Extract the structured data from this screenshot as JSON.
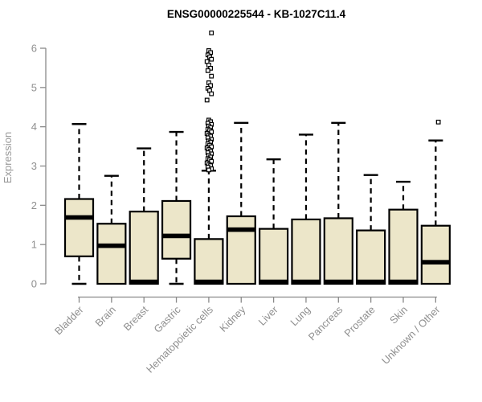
{
  "page": {
    "background": "#ffffff"
  },
  "chart_data": {
    "type": "boxplot",
    "title": "ENSG00000225544 - KB-1027C11.4",
    "xlabel": "",
    "ylabel": "Expression",
    "ylim": [
      0,
      6
    ],
    "yticks": [
      0,
      1,
      2,
      3,
      4,
      5,
      6
    ],
    "grid": false,
    "legend": "none",
    "categories": [
      "Bladder",
      "Brain",
      "Breast",
      "Gastric",
      "Hematopoietic cells",
      "Kidney",
      "Liver",
      "Lung",
      "Pancreas",
      "Prostate",
      "Skin",
      "Unknown / Other"
    ],
    "series": [
      {
        "category": "Bladder",
        "whisker_low": 0,
        "q1": 0.7,
        "median": 1.69,
        "q3": 2.16,
        "whisker_high": 4.07,
        "outliers": []
      },
      {
        "category": "Brain",
        "whisker_low": 0,
        "q1": 0.0,
        "median": 0.97,
        "q3": 1.53,
        "whisker_high": 2.75,
        "outliers": []
      },
      {
        "category": "Breast",
        "whisker_low": 0,
        "q1": 0.0,
        "median": 0.05,
        "q3": 1.84,
        "whisker_high": 3.45,
        "outliers": []
      },
      {
        "category": "Gastric",
        "whisker_low": 0,
        "q1": 0.64,
        "median": 1.22,
        "q3": 2.11,
        "whisker_high": 3.87,
        "outliers": []
      },
      {
        "category": "Hematopoietic cells",
        "whisker_low": 0,
        "q1": 0.0,
        "median": 0.05,
        "q3": 1.14,
        "whisker_high": 2.88,
        "outliers": [
          6.39,
          5.94,
          5.89,
          5.83,
          5.78,
          5.72,
          5.66,
          5.57,
          5.49,
          5.43,
          5.29,
          5.12,
          5.05,
          4.98,
          4.92,
          4.84,
          4.68,
          4.17,
          4.13,
          4.09,
          4.06,
          4.02,
          3.98,
          3.94,
          3.91,
          3.87,
          3.83,
          3.79,
          3.76,
          3.72,
          3.68,
          3.64,
          3.61,
          3.57,
          3.53,
          3.49,
          3.46,
          3.42,
          3.38,
          3.34,
          3.31,
          3.27,
          3.23,
          3.19,
          3.16,
          3.12,
          3.08,
          3.04,
          3.01,
          2.97,
          2.93,
          2.9
        ]
      },
      {
        "category": "Kidney",
        "whisker_low": 0,
        "q1": 0.0,
        "median": 1.38,
        "q3": 1.72,
        "whisker_high": 4.1,
        "outliers": []
      },
      {
        "category": "Liver",
        "whisker_low": 0,
        "q1": 0.0,
        "median": 0.05,
        "q3": 1.4,
        "whisker_high": 3.17,
        "outliers": []
      },
      {
        "category": "Lung",
        "whisker_low": 0,
        "q1": 0.0,
        "median": 0.05,
        "q3": 1.64,
        "whisker_high": 3.8,
        "outliers": []
      },
      {
        "category": "Pancreas",
        "whisker_low": 0,
        "q1": 0.0,
        "median": 0.05,
        "q3": 1.67,
        "whisker_high": 4.1,
        "outliers": []
      },
      {
        "category": "Prostate",
        "whisker_low": 0,
        "q1": 0.0,
        "median": 0.05,
        "q3": 1.36,
        "whisker_high": 2.77,
        "outliers": []
      },
      {
        "category": "Skin",
        "whisker_low": 0,
        "q1": 0.0,
        "median": 0.05,
        "q3": 1.89,
        "whisker_high": 2.6,
        "outliers": []
      },
      {
        "category": "Unknown / Other",
        "whisker_low": 0,
        "q1": 0.0,
        "median": 0.55,
        "q3": 1.48,
        "whisker_high": 3.65,
        "outliers": [
          4.12
        ]
      }
    ],
    "colors": {
      "box_fill": "#ece6c9",
      "box_stroke": "#000000",
      "median": "#000000",
      "whisker": "#000000",
      "outlier_stroke": "#000000",
      "axis": "#8a8a8a",
      "title": "#000000",
      "tick_label": "#8f8f8f"
    }
  }
}
